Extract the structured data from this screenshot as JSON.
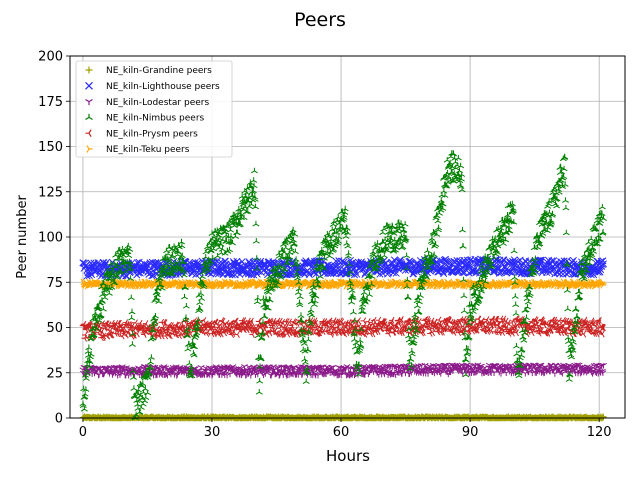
{
  "chart_data": {
    "type": "scatter",
    "title": "Peers",
    "xlabel": "Hours",
    "ylabel": "Peer number",
    "xlim": [
      -3,
      126
    ],
    "ylim": [
      0,
      200
    ],
    "xticks": [
      0,
      30,
      60,
      90,
      120
    ],
    "yticks": [
      0,
      25,
      50,
      75,
      100,
      125,
      150,
      175,
      200
    ],
    "grid": true,
    "legend_position": "upper-left",
    "x_range": [
      0,
      121
    ],
    "series": [
      {
        "name": "NE_kiln-Grandine peers",
        "marker": "+",
        "color": "#a0a000",
        "approx_level": 0,
        "noise": 0.8,
        "x": [
          0,
          120
        ],
        "y": [
          0,
          0
        ]
      },
      {
        "name": "NE_kiln-Lighthouse peers",
        "marker": "x",
        "color": "#2a2aff",
        "approx_level": 83,
        "noise": 4,
        "x": [
          0,
          30,
          60,
          90,
          120
        ],
        "y": [
          82,
          83,
          83,
          84,
          83
        ]
      },
      {
        "name": "NE_kiln-Lodestar peers",
        "marker": "tri_down",
        "color": "#8b1a8b",
        "approx_level": 26,
        "noise": 2.5,
        "x": [
          0,
          30,
          60,
          90,
          120
        ],
        "y": [
          26,
          26,
          26,
          27,
          27
        ]
      },
      {
        "name": "NE_kiln-Nimbus peers",
        "marker": "tri_up",
        "color": "#008000",
        "x": [
          0,
          2,
          5,
          8,
          11,
          12,
          15,
          17,
          19,
          23,
          25,
          28,
          30,
          34,
          36,
          38,
          40,
          41,
          42,
          44,
          47,
          49,
          52,
          53,
          55,
          58,
          61,
          64,
          65,
          68,
          71,
          75,
          76,
          79,
          81,
          83,
          85,
          88,
          89,
          90,
          94,
          97,
          100,
          101,
          104,
          106,
          109,
          112,
          113,
          116,
          119,
          121
        ],
        "y": [
          5,
          45,
          70,
          85,
          90,
          5,
          20,
          65,
          85,
          90,
          25,
          80,
          95,
          100,
          110,
          120,
          130,
          20,
          60,
          75,
          90,
          100,
          25,
          60,
          85,
          100,
          110,
          25,
          60,
          90,
          100,
          100,
          30,
          80,
          90,
          115,
          140,
          135,
          25,
          60,
          85,
          100,
          115,
          25,
          75,
          100,
          115,
          140,
          25,
          80,
          100,
          110
        ]
      },
      {
        "name": "NE_kiln-Prysm peers",
        "marker": "tri_left",
        "color": "#cc2222",
        "approx_level": 50,
        "noise": 4,
        "x": [
          0,
          30,
          60,
          90,
          120
        ],
        "y": [
          48,
          50,
          50,
          51,
          50
        ]
      },
      {
        "name": "NE_kiln-Teku peers",
        "marker": "tri_right",
        "color": "#ffa500",
        "approx_level": 74,
        "noise": 1.2,
        "x": [
          0,
          30,
          60,
          90,
          120
        ],
        "y": [
          74,
          74,
          74,
          74,
          74
        ]
      }
    ]
  }
}
